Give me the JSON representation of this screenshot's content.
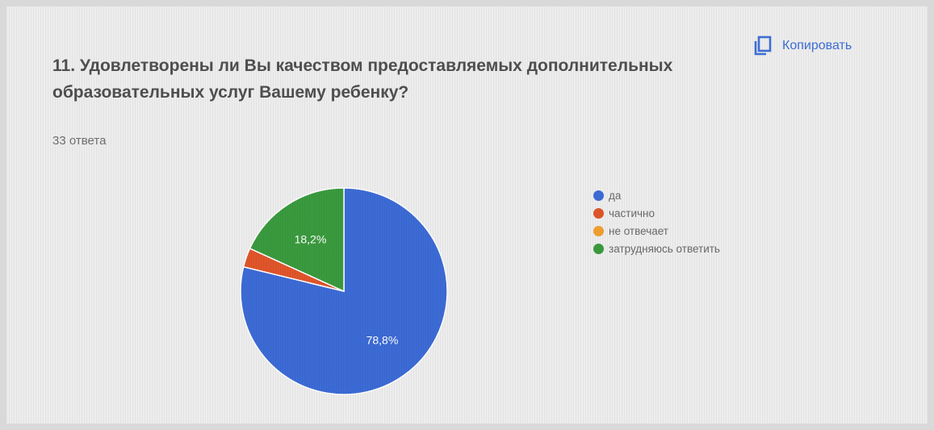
{
  "question": {
    "title": "11. Удовлетворены ли Вы качеством предоставляемых дополнительных образовательных услуг Вашему ребенку?",
    "responses": "33 ответа"
  },
  "actions": {
    "copy_label": "Копировать",
    "copy_icon": "copy-icon"
  },
  "chart_data": {
    "type": "pie",
    "categories": [
      "да",
      "частично",
      "не отвечает",
      "затрудняюсь ответить"
    ],
    "values": [
      78.8,
      3,
      0,
      18.2
    ],
    "data_labels": [
      "78,8%",
      "",
      "",
      "18,2%"
    ],
    "colors": [
      "#3c6bd5",
      "#e0552a",
      "#f0a030",
      "#3a9a3e"
    ],
    "legend_position": "right"
  }
}
